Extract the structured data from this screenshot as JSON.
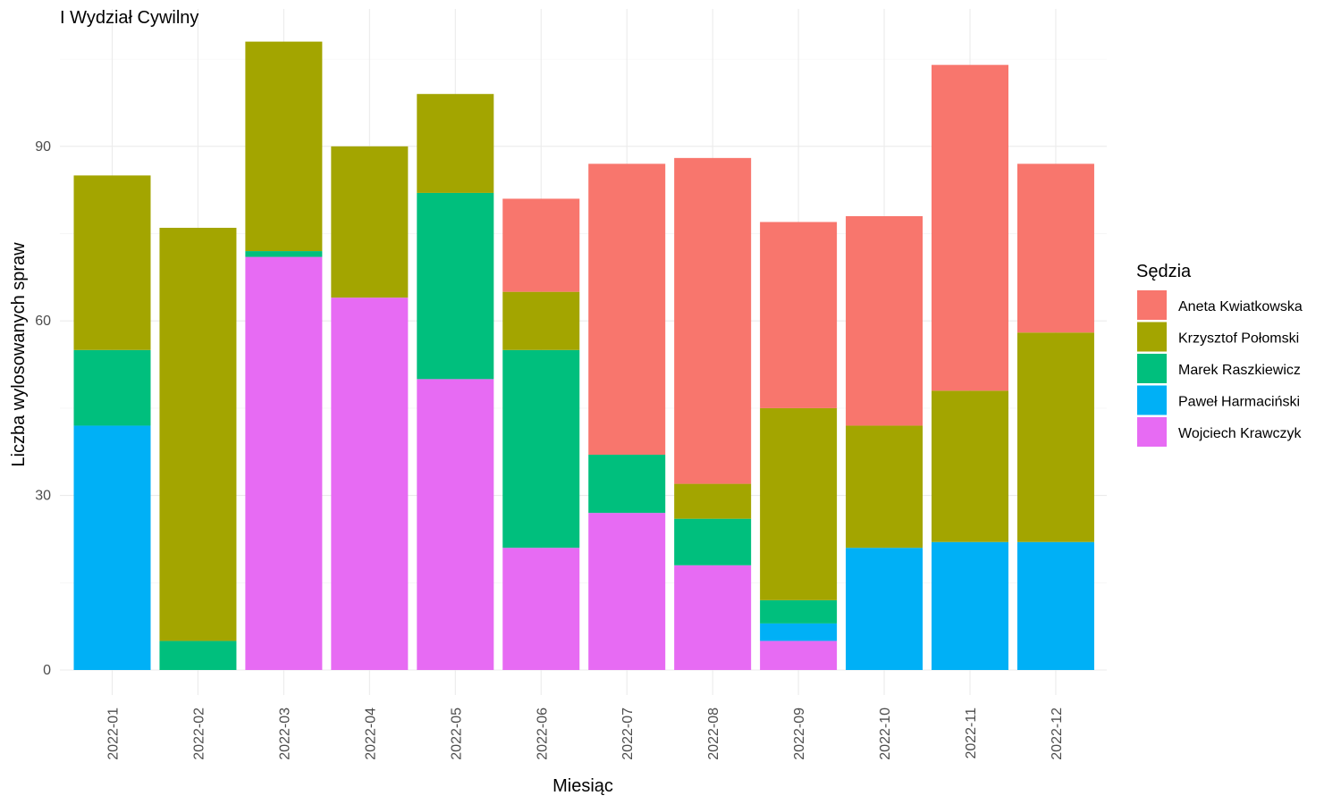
{
  "chart_data": {
    "type": "bar",
    "stacked": true,
    "title": "I Wydział Cywilny",
    "xlabel": "Miesiąc",
    "ylabel": "Liczba wylosowanych spraw",
    "ylim": [
      0,
      108
    ],
    "yticks": [
      0,
      30,
      60,
      90
    ],
    "grid": true,
    "legend_title": "Sędzia",
    "legend_position": "right",
    "categories": [
      "2022-01",
      "2022-02",
      "2022-03",
      "2022-04",
      "2022-05",
      "2022-06",
      "2022-07",
      "2022-08",
      "2022-09",
      "2022-10",
      "2022-11",
      "2022-12"
    ],
    "series": [
      {
        "name": "Aneta Kwiatkowska",
        "color": "#F8766D",
        "values": [
          0,
          0,
          0,
          0,
          0,
          16,
          50,
          56,
          32,
          36,
          56,
          29
        ]
      },
      {
        "name": "Krzysztof Połomski",
        "color": "#A3A500",
        "values": [
          30,
          71,
          36,
          26,
          17,
          10,
          0,
          6,
          33,
          21,
          26,
          36
        ]
      },
      {
        "name": "Marek Raszkiewicz",
        "color": "#00BF7D",
        "values": [
          13,
          5,
          1,
          0,
          32,
          34,
          10,
          8,
          4,
          0,
          0,
          0
        ]
      },
      {
        "name": "Paweł Harmaciński",
        "color": "#00B0F6",
        "values": [
          42,
          0,
          0,
          0,
          0,
          0,
          0,
          0,
          3,
          21,
          22,
          22
        ]
      },
      {
        "name": "Wojciech Krawczyk",
        "color": "#E76BF3",
        "values": [
          0,
          0,
          71,
          64,
          50,
          21,
          27,
          18,
          5,
          0,
          0,
          0
        ]
      }
    ]
  }
}
